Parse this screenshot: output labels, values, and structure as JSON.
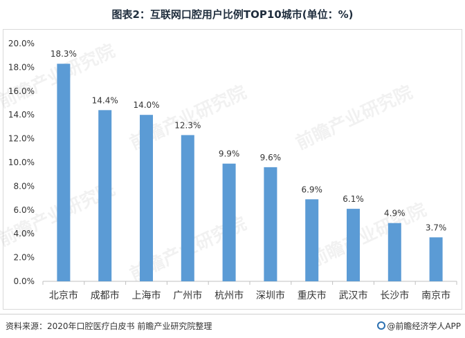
{
  "title": "图表2：互联网口腔用户比例TOP10城市(单位：%)",
  "footer": {
    "source": "资料来源：2020年口腔医疗白皮书 前瞻产业研究院整理",
    "brand": "@前瞻经济学人APP"
  },
  "watermark": "前瞻产业研究院",
  "colors": {
    "bar": "#5b9bd5",
    "axis": "#bfbfbf",
    "text": "#333333"
  },
  "chart_data": {
    "type": "bar",
    "categories": [
      "北京市",
      "成都市",
      "上海市",
      "广州市",
      "杭州市",
      "深圳市",
      "重庆市",
      "武汉市",
      "长沙市",
      "南京市"
    ],
    "values": [
      18.3,
      14.4,
      14.0,
      12.3,
      9.9,
      9.6,
      6.9,
      6.1,
      4.9,
      3.7
    ],
    "value_labels": [
      "18.3%",
      "14.4%",
      "14.0%",
      "12.3%",
      "9.9%",
      "9.6%",
      "6.9%",
      "6.1%",
      "4.9%",
      "3.7%"
    ],
    "y_ticks": [
      0,
      2,
      4,
      6,
      8,
      10,
      12,
      14,
      16,
      18,
      20
    ],
    "y_tick_labels": [
      "0.0%",
      "2.0%",
      "4.0%",
      "6.0%",
      "8.0%",
      "10.0%",
      "12.0%",
      "14.0%",
      "16.0%",
      "18.0%",
      "20.0%"
    ],
    "ylim": [
      0,
      20
    ],
    "grid": false,
    "legend": "none"
  }
}
